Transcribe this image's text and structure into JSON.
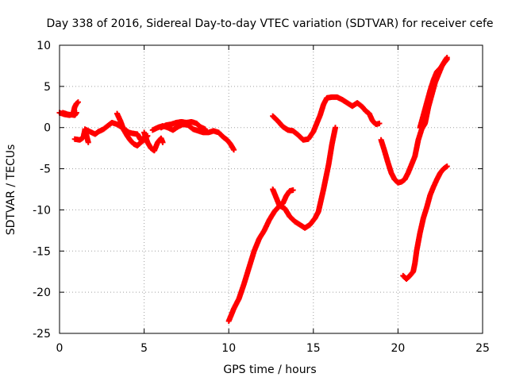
{
  "chart_data": {
    "type": "scatter",
    "title": "Day 338 of 2016, Sidereal Day-to-day VTEC variation (SDTVAR) for receiver cefe",
    "xlabel": "GPS time / hours",
    "ylabel": "SDTVAR / TECUs",
    "xlim": [
      0,
      25
    ],
    "ylim": [
      -25,
      10
    ],
    "xticks": [
      0,
      5,
      10,
      15,
      20,
      25
    ],
    "yticks": [
      -25,
      -20,
      -15,
      -10,
      -5,
      0,
      5,
      10
    ],
    "xtick_labels": [
      "0",
      "5",
      "10",
      "15",
      "20",
      "25"
    ],
    "ytick_labels": [
      "-25",
      "-20",
      "-15",
      "-10",
      "-5",
      "0",
      "5",
      "10"
    ],
    "grid": true,
    "marker": "+",
    "color": "#ff0000",
    "series": [
      {
        "name": "seg1",
        "points": [
          [
            0,
            1.8
          ],
          [
            0.3,
            1.6
          ],
          [
            0.6,
            1.5
          ],
          [
            0.8,
            1.7
          ],
          [
            0.9,
            2.5
          ],
          [
            1.0,
            2.9
          ],
          [
            1.1,
            3.1
          ]
        ]
      },
      {
        "name": "seg2",
        "points": [
          [
            0.2,
            1.8
          ],
          [
            0.5,
            1.6
          ],
          [
            0.9,
            1.5
          ],
          [
            1.0,
            1.8
          ]
        ]
      },
      {
        "name": "seg3",
        "points": [
          [
            0.9,
            -1.4
          ],
          [
            1.2,
            -1.5
          ],
          [
            1.4,
            -1.2
          ],
          [
            1.5,
            -0.3
          ],
          [
            1.6,
            -1.0
          ],
          [
            1.7,
            -1.8
          ]
        ]
      },
      {
        "name": "seg4",
        "points": [
          [
            1.5,
            -0.2
          ],
          [
            1.8,
            -0.5
          ],
          [
            2.1,
            -0.8
          ],
          [
            2.3,
            -0.5
          ],
          [
            2.6,
            -0.2
          ],
          [
            2.9,
            0.3
          ],
          [
            3.1,
            0.6
          ],
          [
            3.4,
            0.4
          ],
          [
            3.7,
            0.0
          ],
          [
            3.9,
            -0.3
          ],
          [
            4.1,
            -0.6
          ],
          [
            4.3,
            -0.7
          ],
          [
            4.6,
            -0.8
          ],
          [
            4.8,
            -1.5
          ],
          [
            5.0,
            -1.2
          ]
        ]
      },
      {
        "name": "seg5",
        "points": [
          [
            3.4,
            1.7
          ],
          [
            3.6,
            0.8
          ],
          [
            3.8,
            -0.3
          ],
          [
            4.0,
            -1.0
          ],
          [
            4.2,
            -1.6
          ],
          [
            4.4,
            -2.0
          ],
          [
            4.6,
            -2.2
          ],
          [
            4.8,
            -1.8
          ],
          [
            5.0,
            -1.5
          ],
          [
            5.2,
            -1.0
          ]
        ]
      },
      {
        "name": "seg6",
        "points": [
          [
            5.0,
            -0.6
          ],
          [
            5.2,
            -1.8
          ],
          [
            5.4,
            -2.5
          ],
          [
            5.6,
            -2.8
          ],
          [
            5.8,
            -1.8
          ],
          [
            6.0,
            -1.3
          ],
          [
            6.1,
            -1.8
          ]
        ]
      },
      {
        "name": "seg7",
        "points": [
          [
            5.5,
            -0.3
          ],
          [
            5.8,
            0.0
          ],
          [
            6.1,
            0.2
          ],
          [
            6.4,
            0.0
          ],
          [
            6.7,
            -0.3
          ],
          [
            7.0,
            0.1
          ],
          [
            7.3,
            0.4
          ],
          [
            7.6,
            0.3
          ],
          [
            7.9,
            -0.2
          ],
          [
            8.2,
            -0.4
          ],
          [
            8.5,
            -0.6
          ],
          [
            8.8,
            -0.6
          ],
          [
            9.1,
            -0.4
          ],
          [
            9.4,
            -0.6
          ],
          [
            9.7,
            -1.2
          ],
          [
            9.9,
            -1.5
          ],
          [
            10.1,
            -2.0
          ],
          [
            10.3,
            -2.7
          ]
        ]
      },
      {
        "name": "seg8",
        "points": [
          [
            6.0,
            0.0
          ],
          [
            6.3,
            0.3
          ],
          [
            6.6,
            0.4
          ],
          [
            6.9,
            0.6
          ],
          [
            7.2,
            0.7
          ],
          [
            7.5,
            0.6
          ],
          [
            7.8,
            0.7
          ],
          [
            8.1,
            0.5
          ],
          [
            8.3,
            0.1
          ],
          [
            8.6,
            -0.2
          ]
        ]
      },
      {
        "name": "seg9",
        "points": [
          [
            10.0,
            -23.5
          ],
          [
            10.3,
            -22.0
          ],
          [
            10.6,
            -20.8
          ],
          [
            10.9,
            -19.0
          ],
          [
            11.2,
            -17.0
          ],
          [
            11.5,
            -15.0
          ],
          [
            11.8,
            -13.5
          ],
          [
            12.1,
            -12.5
          ],
          [
            12.4,
            -11.2
          ],
          [
            12.7,
            -10.2
          ],
          [
            13.0,
            -9.5
          ],
          [
            13.3,
            -9.8
          ],
          [
            13.6,
            -10.8
          ],
          [
            13.9,
            -11.4
          ],
          [
            14.2,
            -11.8
          ],
          [
            14.5,
            -12.2
          ],
          [
            14.8,
            -11.8
          ],
          [
            15.1,
            -11.0
          ],
          [
            15.3,
            -10.2
          ],
          [
            15.6,
            -7.5
          ],
          [
            15.9,
            -4.5
          ],
          [
            16.1,
            -2.0
          ],
          [
            16.3,
            0.0
          ]
        ]
      },
      {
        "name": "seg10",
        "points": [
          [
            12.6,
            -7.5
          ],
          [
            12.8,
            -8.5
          ],
          [
            13.0,
            -9.5
          ],
          [
            13.2,
            -9.2
          ],
          [
            13.4,
            -8.3
          ],
          [
            13.6,
            -7.7
          ],
          [
            13.8,
            -7.6
          ]
        ]
      },
      {
        "name": "seg11",
        "points": [
          [
            12.6,
            1.4
          ],
          [
            12.9,
            0.8
          ],
          [
            13.2,
            0.1
          ],
          [
            13.5,
            -0.3
          ],
          [
            13.8,
            -0.4
          ],
          [
            14.1,
            -0.9
          ],
          [
            14.4,
            -1.5
          ],
          [
            14.7,
            -1.4
          ],
          [
            15.0,
            -0.5
          ],
          [
            15.2,
            0.5
          ],
          [
            15.4,
            1.5
          ],
          [
            15.6,
            2.8
          ],
          [
            15.8,
            3.6
          ],
          [
            16.1,
            3.7
          ],
          [
            16.4,
            3.7
          ],
          [
            16.7,
            3.4
          ],
          [
            17.0,
            3.0
          ],
          [
            17.3,
            2.6
          ],
          [
            17.6,
            3.0
          ],
          [
            17.9,
            2.5
          ],
          [
            18.1,
            2.0
          ],
          [
            18.3,
            1.7
          ],
          [
            18.5,
            0.8
          ],
          [
            18.7,
            0.4
          ],
          [
            18.9,
            0.5
          ]
        ]
      },
      {
        "name": "seg12",
        "points": [
          [
            19.0,
            -1.5
          ],
          [
            19.2,
            -2.8
          ],
          [
            19.4,
            -4.2
          ],
          [
            19.6,
            -5.5
          ],
          [
            19.8,
            -6.3
          ],
          [
            20.0,
            -6.7
          ],
          [
            20.2,
            -6.6
          ],
          [
            20.4,
            -6.3
          ],
          [
            20.6,
            -5.5
          ],
          [
            20.8,
            -4.5
          ],
          [
            21.0,
            -3.5
          ],
          [
            21.2,
            -1.5
          ],
          [
            21.4,
            -0.2
          ],
          [
            21.6,
            0.5
          ],
          [
            21.8,
            2.5
          ],
          [
            22.0,
            4.0
          ],
          [
            22.2,
            5.5
          ],
          [
            22.4,
            6.5
          ],
          [
            22.6,
            7.5
          ],
          [
            22.8,
            8.2
          ],
          [
            22.9,
            8.5
          ]
        ]
      },
      {
        "name": "seg13",
        "points": [
          [
            21.3,
            0.0
          ],
          [
            21.5,
            1.5
          ],
          [
            21.7,
            3.0
          ],
          [
            21.9,
            4.5
          ],
          [
            22.1,
            5.8
          ],
          [
            22.3,
            6.8
          ],
          [
            22.5,
            7.2
          ],
          [
            22.7,
            7.8
          ],
          [
            22.9,
            8.3
          ]
        ]
      },
      {
        "name": "seg14",
        "points": [
          [
            20.3,
            -18.0
          ],
          [
            20.5,
            -18.4
          ],
          [
            20.7,
            -18.0
          ],
          [
            20.9,
            -17.5
          ],
          [
            21.0,
            -16.5
          ],
          [
            21.1,
            -15.0
          ],
          [
            21.3,
            -12.8
          ],
          [
            21.5,
            -11.0
          ],
          [
            21.7,
            -9.7
          ],
          [
            21.9,
            -8.2
          ],
          [
            22.1,
            -7.2
          ],
          [
            22.3,
            -6.3
          ],
          [
            22.5,
            -5.5
          ],
          [
            22.7,
            -5.0
          ],
          [
            22.9,
            -4.7
          ]
        ]
      }
    ]
  }
}
